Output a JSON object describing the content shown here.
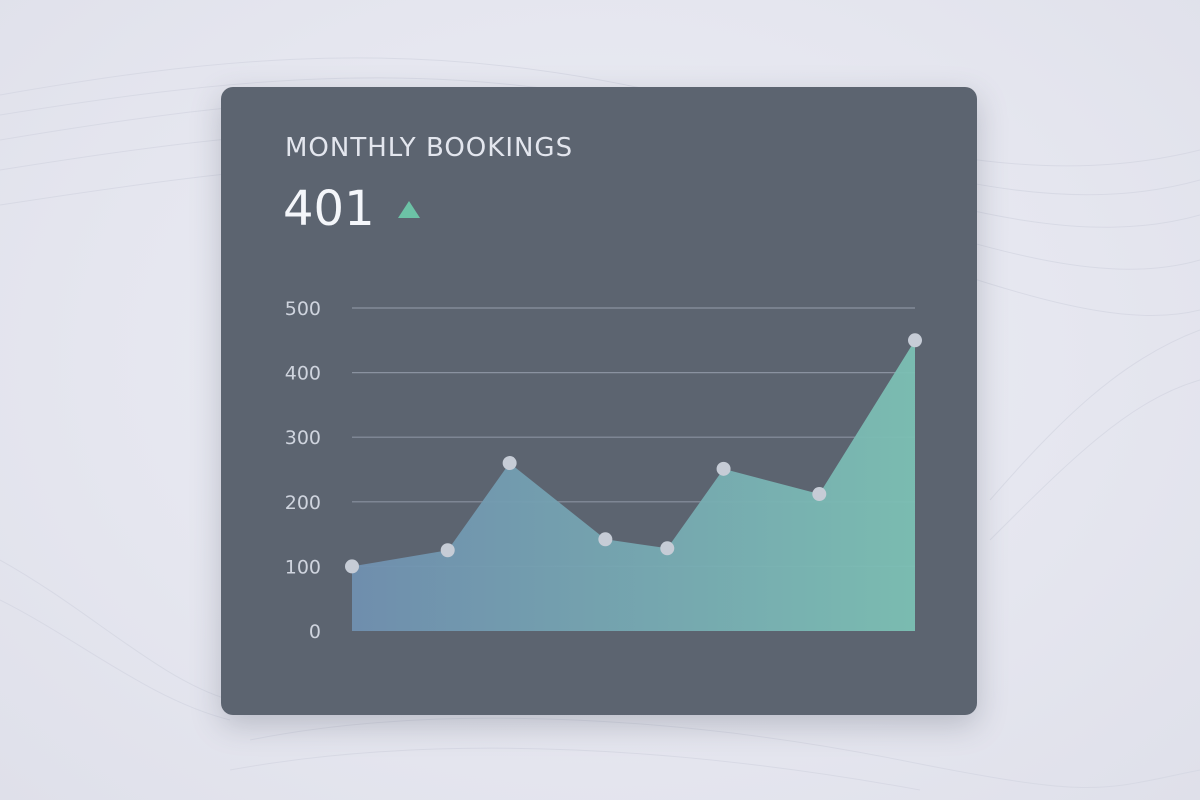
{
  "card": {
    "title": "MONTHLY BOOKINGS",
    "kpi_value": "401",
    "kpi_trend_icon": "triangle-up-icon",
    "kpi_trend_color": "#6cc2a6"
  },
  "colors": {
    "card_background": "#5c6470",
    "grid_line": "#8a92a0",
    "area_fill_start": "#7090b0",
    "area_fill_end": "#7cc0b4",
    "marker_fill": "#c6ccd6"
  },
  "chart_data": {
    "type": "area",
    "title": "MONTHLY BOOKINGS",
    "xlabel": "",
    "ylabel": "",
    "ylim": [
      0,
      500
    ],
    "yticks": [
      0,
      100,
      200,
      300,
      400,
      500
    ],
    "x": [
      0,
      1.7,
      2.8,
      4.5,
      5.6,
      6.6,
      8.3,
      10
    ],
    "values": [
      100,
      125,
      260,
      142,
      128,
      251,
      212,
      450
    ],
    "grid": true,
    "legend": "none",
    "markers": true
  }
}
